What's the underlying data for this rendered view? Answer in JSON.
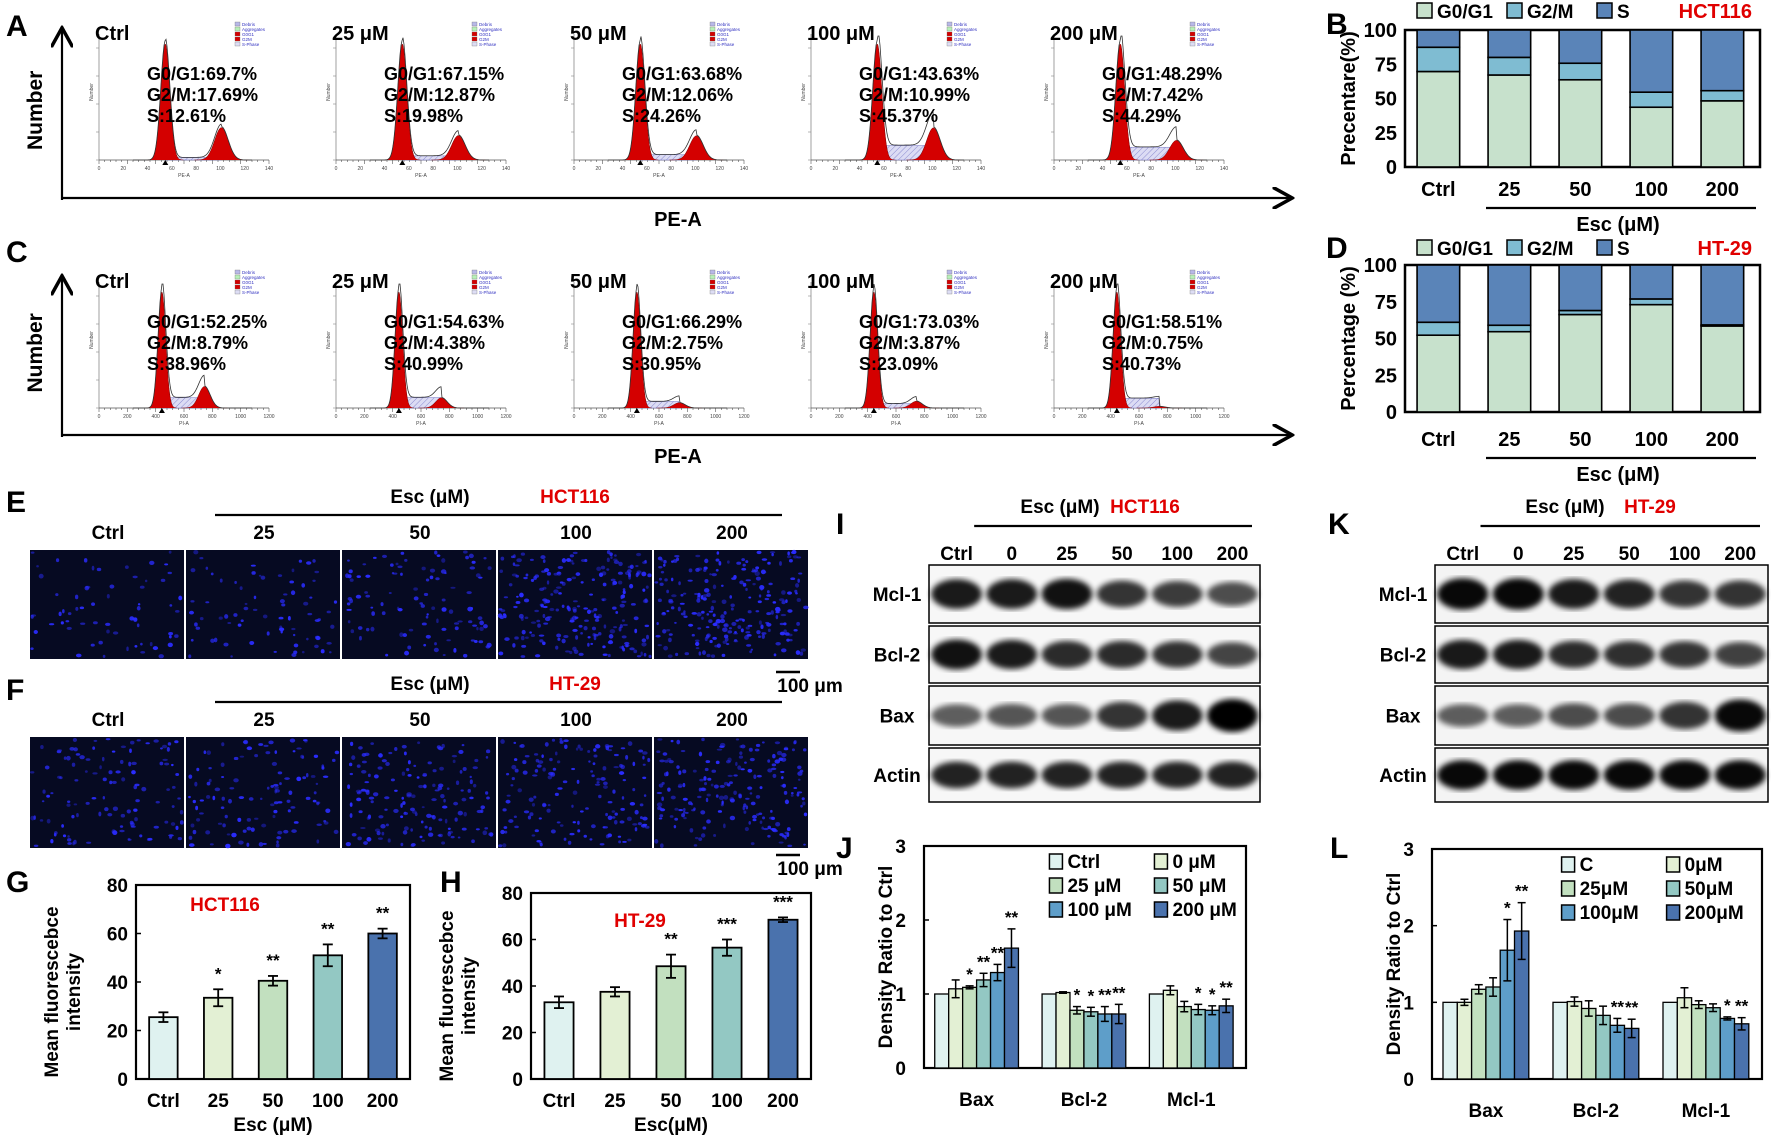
{
  "panel_letters": {
    "A": "A",
    "B": "B",
    "C": "C",
    "D": "D",
    "E": "E",
    "F": "F",
    "G": "G",
    "H": "H",
    "I": "I",
    "J": "J",
    "K": "K",
    "L": "L"
  },
  "flow": {
    "y_label": "Number",
    "x_label": "PE-A",
    "legend_items": [
      "Debris",
      "Aggregates",
      "G0G1",
      "G2M",
      "S-Phase"
    ],
    "hct116": {
      "tiny_x_label": "PE-A",
      "tiny_y_label": "Number",
      "x_ticks": [
        "0",
        "20",
        "40",
        "60",
        "80",
        "100",
        "120",
        "140"
      ],
      "panels": [
        {
          "label": "Ctrl",
          "g0g1": "G0/G1:69.7%",
          "g2m": "G2/M:17.69%",
          "s": "S:12.61%"
        },
        {
          "label": "25 μM",
          "g0g1": "G0/G1:67.15%",
          "g2m": "G2/M:12.87%",
          "s": "S:19.98%"
        },
        {
          "label": "50 μM",
          "g0g1": "G0/G1:63.68%",
          "g2m": "G2/M:12.06%",
          "s": "S:24.26%"
        },
        {
          "label": "100 μM",
          "g0g1": "G0/G1:43.63%",
          "g2m": "G2/M:10.99%",
          "s": "S:45.37%"
        },
        {
          "label": "200 μM",
          "g0g1": "G0/G1:48.29%",
          "g2m": "G2/M:7.42%",
          "s": "S:44.29%"
        }
      ]
    },
    "ht29": {
      "tiny_x_label": "PI-A",
      "tiny_y_label": "Number",
      "x_ticks": [
        "0",
        "200",
        "400",
        "600",
        "800",
        "1000",
        "1200"
      ],
      "panels": [
        {
          "label": "Ctrl",
          "g0g1": "G0/G1:52.25%",
          "g2m": "G2/M:8.79%",
          "s": "S:38.96%"
        },
        {
          "label": "25 μM",
          "g0g1": "G0/G1:54.63%",
          "g2m": "G2/M:4.38%",
          "s": "S:40.99%"
        },
        {
          "label": "50 μM",
          "g0g1": "G0/G1:66.29%",
          "g2m": "G2/M:2.75%",
          "s": "S:30.95%"
        },
        {
          "label": "100 μM",
          "g0g1": "G0/G1:73.03%",
          "g2m": "G2/M:3.87%",
          "s": "S:23.09%"
        },
        {
          "label": "200 μM",
          "g0g1": "G0/G1:58.51%",
          "g2m": "G2/M:0.75%",
          "s": "S:40.73%"
        }
      ]
    }
  },
  "imaging": {
    "treatment_label": "Esc (μM)",
    "columns": [
      "Ctrl",
      "25",
      "50",
      "100",
      "200"
    ],
    "rows": [
      {
        "cell_line": "HCT116",
        "density": [
          0.25,
          0.3,
          0.4,
          0.85,
          0.9
        ]
      },
      {
        "cell_line": "HT-29",
        "density": [
          0.45,
          0.45,
          0.6,
          0.6,
          0.75
        ]
      }
    ],
    "scale_bar": "100 μm"
  },
  "blots": {
    "treatment_label": "Esc (μM)",
    "lanes": [
      "Ctrl",
      "0",
      "25",
      "50",
      "100",
      "200"
    ],
    "proteins": [
      "Mcl-1",
      "Bcl-2",
      "Bax",
      "Actin"
    ],
    "panels": [
      {
        "cell_line": "HCT116",
        "intensity": [
          [
            0.85,
            0.85,
            0.9,
            0.7,
            0.65,
            0.55
          ],
          [
            0.9,
            0.85,
            0.75,
            0.75,
            0.72,
            0.6
          ],
          [
            0.45,
            0.5,
            0.5,
            0.7,
            0.85,
            1.0
          ],
          [
            0.8,
            0.8,
            0.8,
            0.8,
            0.8,
            0.8
          ]
        ]
      },
      {
        "cell_line": "HT-29",
        "intensity": [
          [
            0.95,
            0.95,
            0.85,
            0.8,
            0.7,
            0.7
          ],
          [
            0.85,
            0.85,
            0.75,
            0.72,
            0.7,
            0.62
          ],
          [
            0.45,
            0.45,
            0.55,
            0.55,
            0.7,
            0.95
          ],
          [
            0.95,
            0.95,
            0.95,
            0.95,
            0.95,
            0.95
          ]
        ]
      }
    ]
  },
  "colors": {
    "red_label": "#e00000",
    "g0g1": "#c7e1cc",
    "g2m": "#7fbcd2",
    "s": "#5a84b8",
    "dose": [
      "#dff2f0",
      "#e3f0d4",
      "#c2e0bf",
      "#93c8c3",
      "#5e9ec9",
      "#4a72ad"
    ],
    "hist_red": "#d40000",
    "nuclei": "#2a2cff",
    "field": "#060a22"
  },
  "chart_data": [
    {
      "id": "B",
      "type": "bar",
      "stacked": true,
      "title": "HCT116",
      "categories": [
        "Ctrl",
        "25",
        "50",
        "100",
        "200"
      ],
      "series": [
        {
          "name": "G0/G1",
          "values": [
            69.7,
            67.15,
            63.68,
            43.63,
            48.29
          ]
        },
        {
          "name": "G2/M",
          "values": [
            17.69,
            12.87,
            12.06,
            10.99,
            7.42
          ]
        },
        {
          "name": "S",
          "values": [
            12.61,
            19.98,
            24.26,
            45.37,
            44.29
          ]
        }
      ],
      "xlabel": "Esc (μM)",
      "ylabel": "Precentare(%)",
      "ylim": [
        0,
        100
      ],
      "yticks": [
        "0",
        "25",
        "50",
        "75",
        "100"
      ],
      "legend": "top"
    },
    {
      "id": "D",
      "type": "bar",
      "stacked": true,
      "title": "HT-29",
      "categories": [
        "Ctrl",
        "25",
        "50",
        "100",
        "200"
      ],
      "series": [
        {
          "name": "G0/G1",
          "values": [
            52.25,
            54.63,
            66.29,
            73.03,
            58.51
          ]
        },
        {
          "name": "G2/M",
          "values": [
            8.79,
            4.38,
            2.75,
            3.87,
            0.75
          ]
        },
        {
          "name": "S",
          "values": [
            38.96,
            40.99,
            30.95,
            23.09,
            40.73
          ]
        }
      ],
      "xlabel": "Esc (μM)",
      "ylabel": "Percentage (%)",
      "ylim": [
        0,
        100
      ],
      "yticks": [
        "0",
        "25",
        "50",
        "75",
        "100"
      ],
      "legend": "top"
    },
    {
      "id": "G",
      "type": "bar",
      "title": "HCT116",
      "categories": [
        "Ctrl",
        "25",
        "50",
        "100",
        "200"
      ],
      "values": [
        25.5,
        33.5,
        40.5,
        51,
        60
      ],
      "errors": [
        2,
        3.5,
        2,
        4.5,
        2
      ],
      "significance": [
        "",
        "*",
        "**",
        "**",
        "**"
      ],
      "xlabel": "Esc (μM)",
      "ylabel": [
        "Mean fluorescebce",
        "intensity"
      ],
      "ylim": [
        0,
        80
      ],
      "yticks": [
        "0",
        "20",
        "40",
        "60",
        "80"
      ]
    },
    {
      "id": "H",
      "type": "bar",
      "title": "HT-29",
      "categories": [
        "Ctrl",
        "25",
        "50",
        "100",
        "200"
      ],
      "values": [
        33,
        37.5,
        48.5,
        56.5,
        68.5
      ],
      "errors": [
        2.5,
        2,
        5,
        3.5,
        1
      ],
      "significance": [
        "",
        "",
        "**",
        "***",
        "***"
      ],
      "xlabel": "Esc(μM)",
      "ylabel": [
        "Mean fluorescebce",
        "intensity"
      ],
      "ylim": [
        0,
        80
      ],
      "yticks": [
        "0",
        "20",
        "40",
        "60",
        "80"
      ]
    },
    {
      "id": "J",
      "type": "bar",
      "grouped": true,
      "categories": [
        "Bax",
        "Bcl-2",
        "Mcl-1"
      ],
      "series": [
        {
          "name": "Ctrl",
          "values": [
            1,
            1,
            1
          ],
          "errors": [
            0,
            0,
            0
          ],
          "significance": [
            "",
            "",
            ""
          ]
        },
        {
          "name": "0 μM",
          "values": [
            1.07,
            1.02,
            1.05
          ],
          "errors": [
            0.12,
            0.01,
            0.06
          ],
          "significance": [
            "",
            "",
            ""
          ]
        },
        {
          "name": "25 μM",
          "values": [
            1.09,
            0.78,
            0.83
          ],
          "errors": [
            0.02,
            0.05,
            0.07
          ],
          "significance": [
            "*",
            "*",
            ""
          ]
        },
        {
          "name": "50 μM",
          "values": [
            1.19,
            0.76,
            0.79
          ],
          "errors": [
            0.09,
            0.06,
            0.07
          ],
          "significance": [
            "**",
            "*",
            "*"
          ]
        },
        {
          "name": "100 μM",
          "values": [
            1.29,
            0.73,
            0.78
          ],
          "errors": [
            0.11,
            0.1,
            0.06
          ],
          "significance": [
            "**",
            "**",
            "*"
          ]
        },
        {
          "name": "200 μM",
          "values": [
            1.62,
            0.73,
            0.84
          ],
          "errors": [
            0.26,
            0.13,
            0.09
          ],
          "significance": [
            "**",
            "**",
            "**"
          ]
        }
      ],
      "xlabel": "",
      "ylabel": "Density Ratio to Ctrl",
      "ylim": [
        0,
        3
      ],
      "yticks": [
        "0",
        "1",
        "2",
        "3"
      ],
      "legend": "top-right"
    },
    {
      "id": "L",
      "type": "bar",
      "grouped": true,
      "categories": [
        "Bax",
        "Bcl-2",
        "Mcl-1"
      ],
      "series": [
        {
          "name": "C",
          "values": [
            1,
            1,
            1
          ],
          "errors": [
            0,
            0,
            0
          ],
          "significance": [
            "",
            "",
            ""
          ]
        },
        {
          "name": "0μM",
          "values": [
            1,
            1.01,
            1.06
          ],
          "errors": [
            0.04,
            0.06,
            0.13
          ],
          "significance": [
            "",
            "",
            ""
          ]
        },
        {
          "name": "25μM",
          "values": [
            1.17,
            0.92,
            0.97
          ],
          "errors": [
            0.06,
            0.1,
            0.05
          ],
          "significance": [
            "",
            "",
            ""
          ]
        },
        {
          "name": "50μM",
          "values": [
            1.2,
            0.83,
            0.93
          ],
          "errors": [
            0.12,
            0.12,
            0.05
          ],
          "significance": [
            "",
            "",
            ""
          ]
        },
        {
          "name": "100μM",
          "values": [
            1.68,
            0.7,
            0.79
          ],
          "errors": [
            0.4,
            0.09,
            0.02
          ],
          "significance": [
            "*",
            "**",
            "*"
          ]
        },
        {
          "name": "200μM",
          "values": [
            1.93,
            0.66,
            0.72
          ],
          "errors": [
            0.37,
            0.12,
            0.08
          ],
          "significance": [
            "**",
            "**",
            "**"
          ]
        }
      ],
      "xlabel": "",
      "ylabel": "Density Ratio to Ctrl",
      "ylim": [
        0,
        3
      ],
      "yticks": [
        "0",
        "1",
        "2",
        "3"
      ],
      "legend": "top-right"
    }
  ]
}
